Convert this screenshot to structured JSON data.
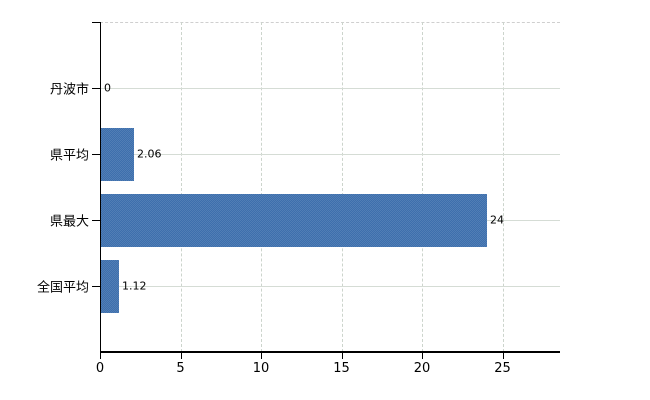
{
  "chart_data": {
    "type": "bar",
    "orientation": "horizontal",
    "title": "",
    "xlabel": "",
    "ylabel": "",
    "categories": [
      "丹波市",
      "県平均",
      "県最大",
      "全国平均"
    ],
    "values": [
      0,
      2.06,
      24,
      1.12
    ],
    "value_labels": [
      "0",
      "2.06",
      "24",
      "1.12"
    ],
    "xticks": [
      0,
      5,
      10,
      15,
      20,
      25
    ],
    "xtick_labels": [
      "0",
      "5",
      "10",
      "15",
      "20",
      "25"
    ],
    "xlim": [
      0,
      28.6
    ],
    "grid": true,
    "legend": null,
    "colors": {
      "bar": "#3d6fad",
      "axis": "#000000",
      "gridline_horizontal": "#d5dcd5",
      "gridline_vertical": "#ccd4cc",
      "plot_top_border": "#cfcfcf",
      "text": "#000000",
      "background": "#ffffff"
    }
  }
}
